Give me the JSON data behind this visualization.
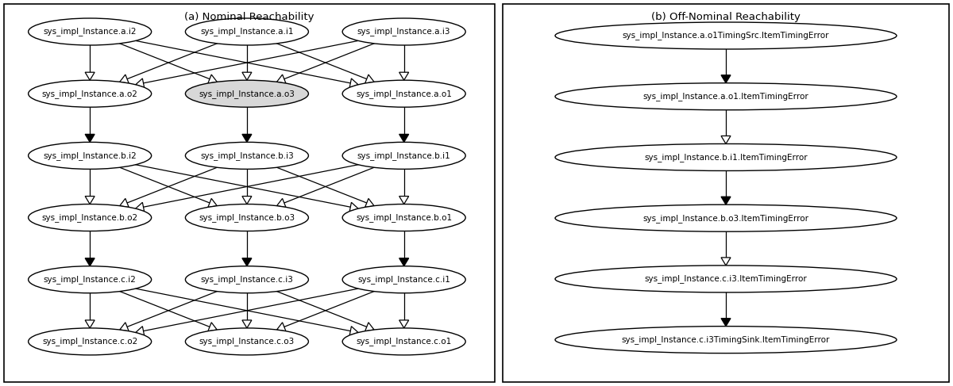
{
  "fig_width": 12.0,
  "fig_height": 4.87,
  "bg_color": "#ffffff",
  "panel_a": {
    "title": "(a) Nominal Reachability",
    "nodes": [
      {
        "id": "a_i2",
        "label": "sys_impl_Instance.a.i2",
        "col": 0,
        "row": 0
      },
      {
        "id": "a_i1",
        "label": "sys_impl_Instance.a.i1",
        "col": 1,
        "row": 0
      },
      {
        "id": "a_i3",
        "label": "sys_impl_Instance.a.i3",
        "col": 2,
        "row": 0
      },
      {
        "id": "a_o2",
        "label": "sys_impl_Instance.a.o2",
        "col": 0,
        "row": 1
      },
      {
        "id": "a_o3",
        "label": "sys_impl_Instance.a.o3",
        "col": 1,
        "row": 1
      },
      {
        "id": "a_o1",
        "label": "sys_impl_Instance.a.o1",
        "col": 2,
        "row": 1
      },
      {
        "id": "b_i2",
        "label": "sys_impl_Instance.b.i2",
        "col": 0,
        "row": 2
      },
      {
        "id": "b_i3",
        "label": "sys_impl_Instance.b.i3",
        "col": 1,
        "row": 2
      },
      {
        "id": "b_i1",
        "label": "sys_impl_Instance.b.i1",
        "col": 2,
        "row": 2
      },
      {
        "id": "b_o2",
        "label": "sys_impl_Instance.b.o2",
        "col": 0,
        "row": 3
      },
      {
        "id": "b_o3",
        "label": "sys_impl_Instance.b.o3",
        "col": 1,
        "row": 3
      },
      {
        "id": "b_o1",
        "label": "sys_impl_Instance.b.o1",
        "col": 2,
        "row": 3
      },
      {
        "id": "c_i2",
        "label": "sys_impl_Instance.c.i2",
        "col": 0,
        "row": 4
      },
      {
        "id": "c_i3",
        "label": "sys_impl_Instance.c.i3",
        "col": 1,
        "row": 4
      },
      {
        "id": "c_i1",
        "label": "sys_impl_Instance.c.i1",
        "col": 2,
        "row": 4
      },
      {
        "id": "c_o2",
        "label": "sys_impl_Instance.c.o2",
        "col": 0,
        "row": 5
      },
      {
        "id": "c_o3",
        "label": "sys_impl_Instance.c.o3",
        "col": 1,
        "row": 5
      },
      {
        "id": "c_o1",
        "label": "sys_impl_Instance.c.o1",
        "col": 2,
        "row": 5
      }
    ],
    "edges": [
      {
        "src": "a_i2",
        "dst": "a_o2",
        "filled": false
      },
      {
        "src": "a_i2",
        "dst": "a_o3",
        "filled": false
      },
      {
        "src": "a_i2",
        "dst": "a_o1",
        "filled": false
      },
      {
        "src": "a_i1",
        "dst": "a_o2",
        "filled": false
      },
      {
        "src": "a_i1",
        "dst": "a_o3",
        "filled": false
      },
      {
        "src": "a_i1",
        "dst": "a_o1",
        "filled": false
      },
      {
        "src": "a_i3",
        "dst": "a_o2",
        "filled": false
      },
      {
        "src": "a_i3",
        "dst": "a_o3",
        "filled": false
      },
      {
        "src": "a_i3",
        "dst": "a_o1",
        "filled": false
      },
      {
        "src": "a_o2",
        "dst": "b_i2",
        "filled": true
      },
      {
        "src": "a_o3",
        "dst": "b_i3",
        "filled": true
      },
      {
        "src": "a_o1",
        "dst": "b_i1",
        "filled": true
      },
      {
        "src": "b_i2",
        "dst": "b_o2",
        "filled": false
      },
      {
        "src": "b_i2",
        "dst": "b_o3",
        "filled": false
      },
      {
        "src": "b_i2",
        "dst": "b_o1",
        "filled": false
      },
      {
        "src": "b_i3",
        "dst": "b_o2",
        "filled": false
      },
      {
        "src": "b_i3",
        "dst": "b_o3",
        "filled": false
      },
      {
        "src": "b_i3",
        "dst": "b_o1",
        "filled": false
      },
      {
        "src": "b_i1",
        "dst": "b_o2",
        "filled": false
      },
      {
        "src": "b_i1",
        "dst": "b_o3",
        "filled": false
      },
      {
        "src": "b_i1",
        "dst": "b_o1",
        "filled": false
      },
      {
        "src": "b_o2",
        "dst": "c_i2",
        "filled": true
      },
      {
        "src": "b_o3",
        "dst": "c_i3",
        "filled": true
      },
      {
        "src": "b_o1",
        "dst": "c_i1",
        "filled": true
      },
      {
        "src": "c_i2",
        "dst": "c_o2",
        "filled": false
      },
      {
        "src": "c_i2",
        "dst": "c_o3",
        "filled": false
      },
      {
        "src": "c_i2",
        "dst": "c_o1",
        "filled": false
      },
      {
        "src": "c_i3",
        "dst": "c_o2",
        "filled": false
      },
      {
        "src": "c_i3",
        "dst": "c_o3",
        "filled": false
      },
      {
        "src": "c_i3",
        "dst": "c_o1",
        "filled": false
      },
      {
        "src": "c_i1",
        "dst": "c_o2",
        "filled": false
      },
      {
        "src": "c_i1",
        "dst": "c_o3",
        "filled": false
      },
      {
        "src": "c_i1",
        "dst": "c_o1",
        "filled": false
      }
    ],
    "highlighted_node": "a_o3"
  },
  "panel_b": {
    "title": "(b) Off-Nominal Reachability",
    "nodes": [
      {
        "id": "src",
        "label": "sys_impl_Instance.a.o1TimingSrc.ItemTimingError",
        "row": 0
      },
      {
        "id": "ao1",
        "label": "sys_impl_Instance.a.o1.ItemTimingError",
        "row": 1
      },
      {
        "id": "bi1",
        "label": "sys_impl_Instance.b.i1.ItemTimingError",
        "row": 2
      },
      {
        "id": "bo3",
        "label": "sys_impl_Instance.b.o3.ItemTimingError",
        "row": 3
      },
      {
        "id": "ci3",
        "label": "sys_impl_Instance.c.i3.ItemTimingError",
        "row": 4
      },
      {
        "id": "sink",
        "label": "sys_impl_Instance.c.i3TimingSink.ItemTimingError",
        "row": 5
      }
    ],
    "edges": [
      {
        "src": "src",
        "dst": "ao1",
        "filled": true
      },
      {
        "src": "ao1",
        "dst": "bi1",
        "filled": false
      },
      {
        "src": "bi1",
        "dst": "bo3",
        "filled": true
      },
      {
        "src": "bo3",
        "dst": "ci3",
        "filled": false
      },
      {
        "src": "ci3",
        "dst": "sink",
        "filled": true
      }
    ]
  }
}
